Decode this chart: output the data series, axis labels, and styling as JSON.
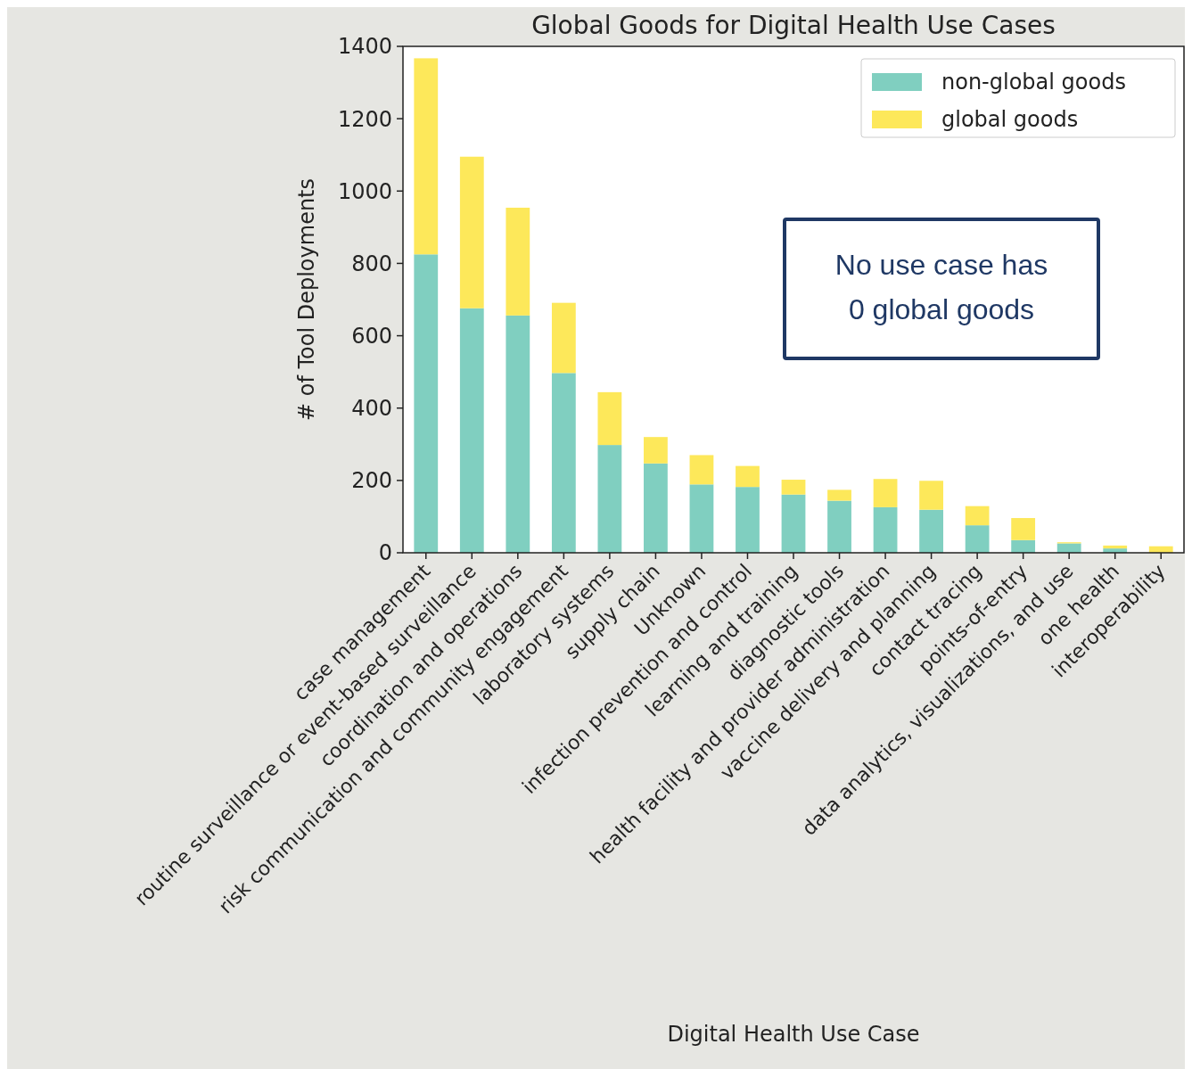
{
  "chart_data": {
    "type": "bar",
    "title": "Global Goods for Digital Health Use Cases",
    "xlabel": "Digital Health Use Case",
    "ylabel": "# of Tool Deployments",
    "categories": [
      "case management",
      "routine surveillance or event-based surveillance",
      "coordination and operations",
      "risk communication and community engagement",
      "laboratory systems",
      "supply chain",
      "Unknown",
      "infection prevention and control",
      "learning and training",
      "diagnostic tools",
      "health facility and provider administration",
      "vaccine delivery and planning",
      "contact tracing",
      "points-of-entry",
      "data analytics, visualizations, and use",
      "one health",
      "interoperability"
    ],
    "series": [
      {
        "name": "non-global goods",
        "color": "#80cfc0",
        "values": [
          825,
          676,
          656,
          497,
          298,
          247,
          189,
          182,
          161,
          144,
          126,
          119,
          76,
          35,
          26,
          12,
          null
        ]
      },
      {
        "name": "global goods",
        "color": "#fde85a",
        "values": [
          542,
          419,
          298,
          194,
          146,
          73,
          81,
          58,
          41,
          30,
          78,
          80,
          53,
          61,
          3,
          8,
          18
        ]
      }
    ],
    "stacked": true,
    "ylim": [
      0,
      1400
    ],
    "yticks": [
      0,
      200,
      400,
      600,
      800,
      1000,
      1200,
      1400
    ],
    "grid": false,
    "legend": "top right",
    "annotations": [
      "No use case has 0 global goods"
    ]
  }
}
